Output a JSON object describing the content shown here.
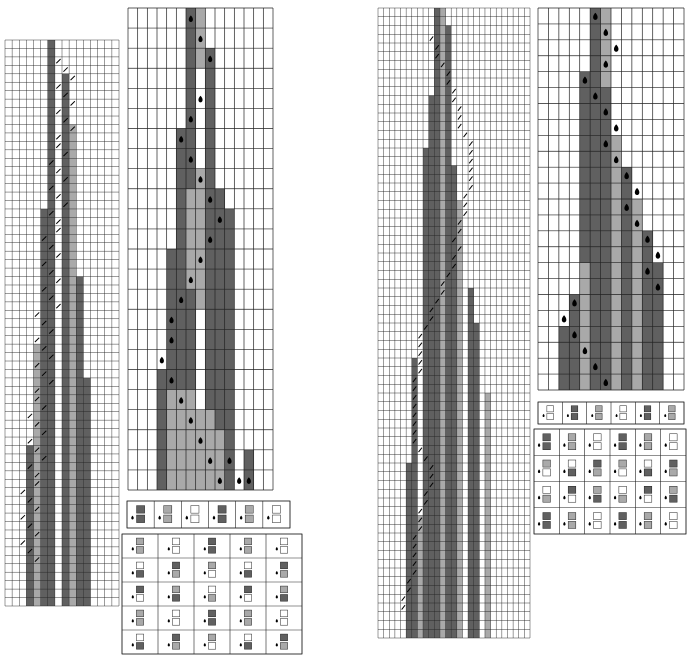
{
  "colors": {
    "background": "#ffffff",
    "grid_line": "#222222",
    "state_dark": "#606060",
    "state_light": "#a9a9a9",
    "state_empty": "#ffffff",
    "head": "#000000"
  },
  "icons": {
    "head": "drop-head-icon",
    "rule_cell": "rule-table-icon"
  },
  "figure_left": {
    "spacetime_small": {
      "cols": 16,
      "rows": 67
    },
    "spacetime_large": {
      "cols": 15,
      "rows": 24
    },
    "rule_header": {
      "cols": 6,
      "rows": 1
    },
    "rule_table": {
      "cols": 5,
      "rows": 5
    }
  },
  "figure_right": {
    "spacetime_small": {
      "cols": 27,
      "rows": 72
    },
    "spacetime_large": {
      "cols": 14,
      "rows": 24
    },
    "rule_header": {
      "cols": 6,
      "rows": 1
    },
    "rule_table": {
      "cols": 6,
      "rows": 4
    }
  }
}
